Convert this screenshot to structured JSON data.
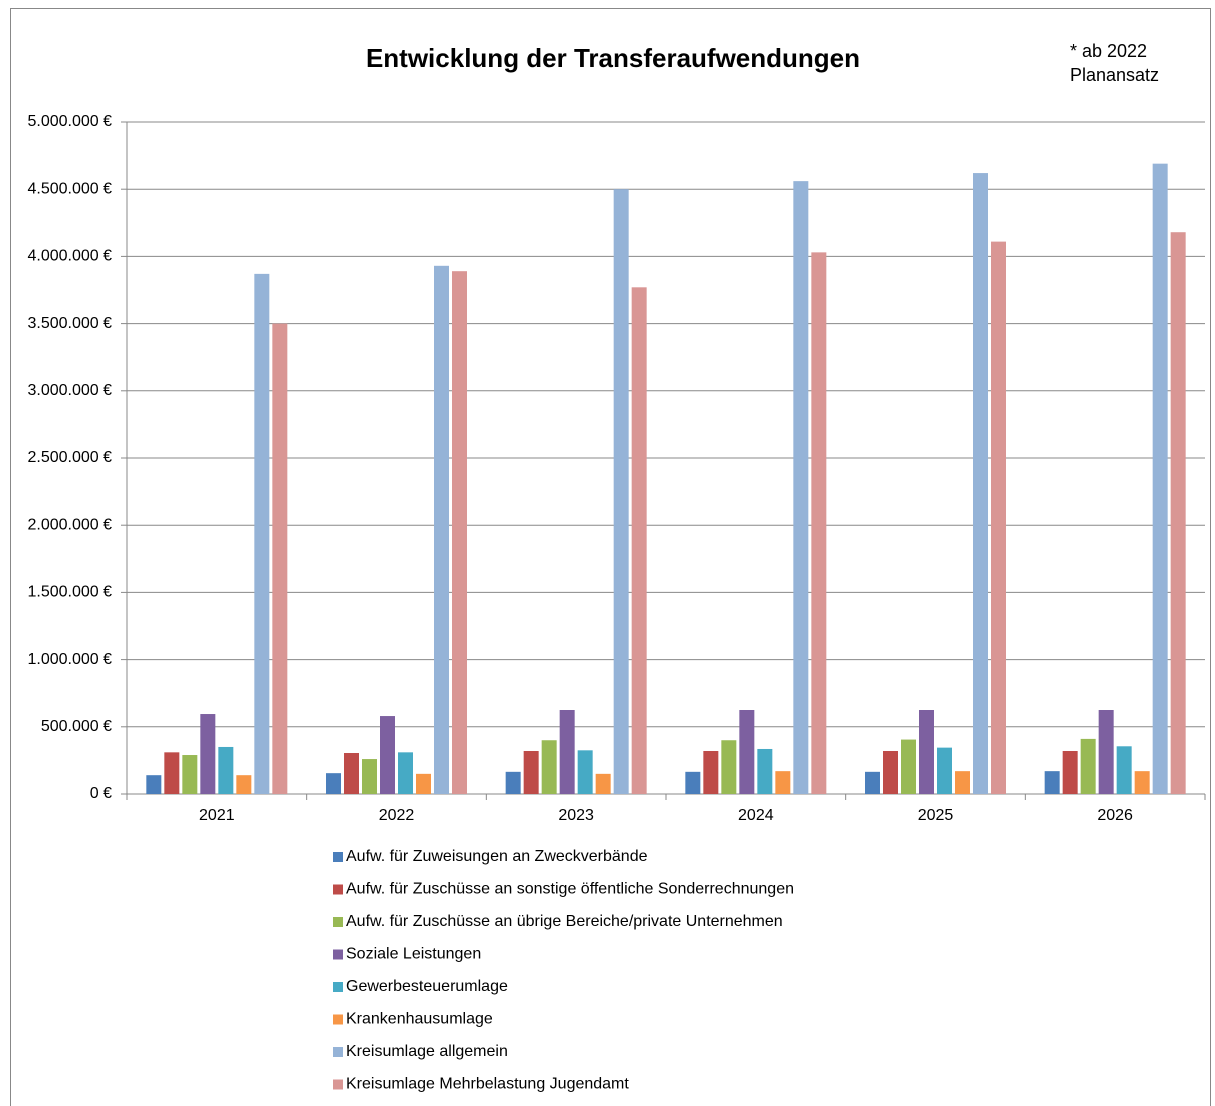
{
  "chart_data": {
    "type": "bar",
    "title": "Entwicklung der Transferaufwendungen",
    "annotation": [
      "* ab 2022",
      "Planansatz"
    ],
    "categories": [
      "2021",
      "2022",
      "2023",
      "2024",
      "2025",
      "2026"
    ],
    "series": [
      {
        "name": "Aufw. für Zuweisungen an Zweckverbände",
        "color": "#4a7ebb",
        "values": [
          140000,
          155000,
          165000,
          165000,
          165000,
          170000
        ]
      },
      {
        "name": "Aufw. für Zuschüsse an sonstige öffentliche Sonderrechnungen",
        "color": "#be4b48",
        "values": [
          310000,
          305000,
          320000,
          320000,
          320000,
          320000
        ]
      },
      {
        "name": "Aufw. für Zuschüsse an übrige Bereiche/private Unternehmen",
        "color": "#98b954",
        "values": [
          290000,
          260000,
          400000,
          400000,
          405000,
          410000
        ]
      },
      {
        "name": "Soziale Leistungen",
        "color": "#7d60a0",
        "values": [
          595000,
          580000,
          625000,
          625000,
          625000,
          625000
        ]
      },
      {
        "name": "Gewerbesteuerumlage",
        "color": "#46aac5",
        "values": [
          350000,
          310000,
          325000,
          335000,
          345000,
          355000
        ]
      },
      {
        "name": "Krankenhausumlage",
        "color": "#f79646",
        "values": [
          140000,
          150000,
          150000,
          170000,
          170000,
          170000
        ]
      },
      {
        "name": "Kreisumlage allgemein",
        "color": "#95b3d7",
        "values": [
          3870000,
          3930000,
          4500000,
          4560000,
          4620000,
          4690000
        ]
      },
      {
        "name": "Kreisumlage Mehrbelastung Jugendamt",
        "color": "#d99694",
        "values": [
          3500000,
          3890000,
          3770000,
          4030000,
          4110000,
          4180000
        ]
      }
    ],
    "ylim": [
      0,
      5000000
    ],
    "yticks": [
      {
        "value": 0,
        "label": "0 €"
      },
      {
        "value": 500000,
        "label": "500.000 €"
      },
      {
        "value": 1000000,
        "label": "1.000.000 €"
      },
      {
        "value": 1500000,
        "label": "1.500.000 €"
      },
      {
        "value": 2000000,
        "label": "2.000.000 €"
      },
      {
        "value": 2500000,
        "label": "2.500.000 €"
      },
      {
        "value": 3000000,
        "label": "3.000.000 €"
      },
      {
        "value": 3500000,
        "label": "3.500.000 €"
      },
      {
        "value": 4000000,
        "label": "4.000.000 €"
      },
      {
        "value": 4500000,
        "label": "4.500.000 €"
      },
      {
        "value": 5000000,
        "label": "5.000.000 €"
      }
    ],
    "grid": true,
    "legend": "bottom"
  }
}
